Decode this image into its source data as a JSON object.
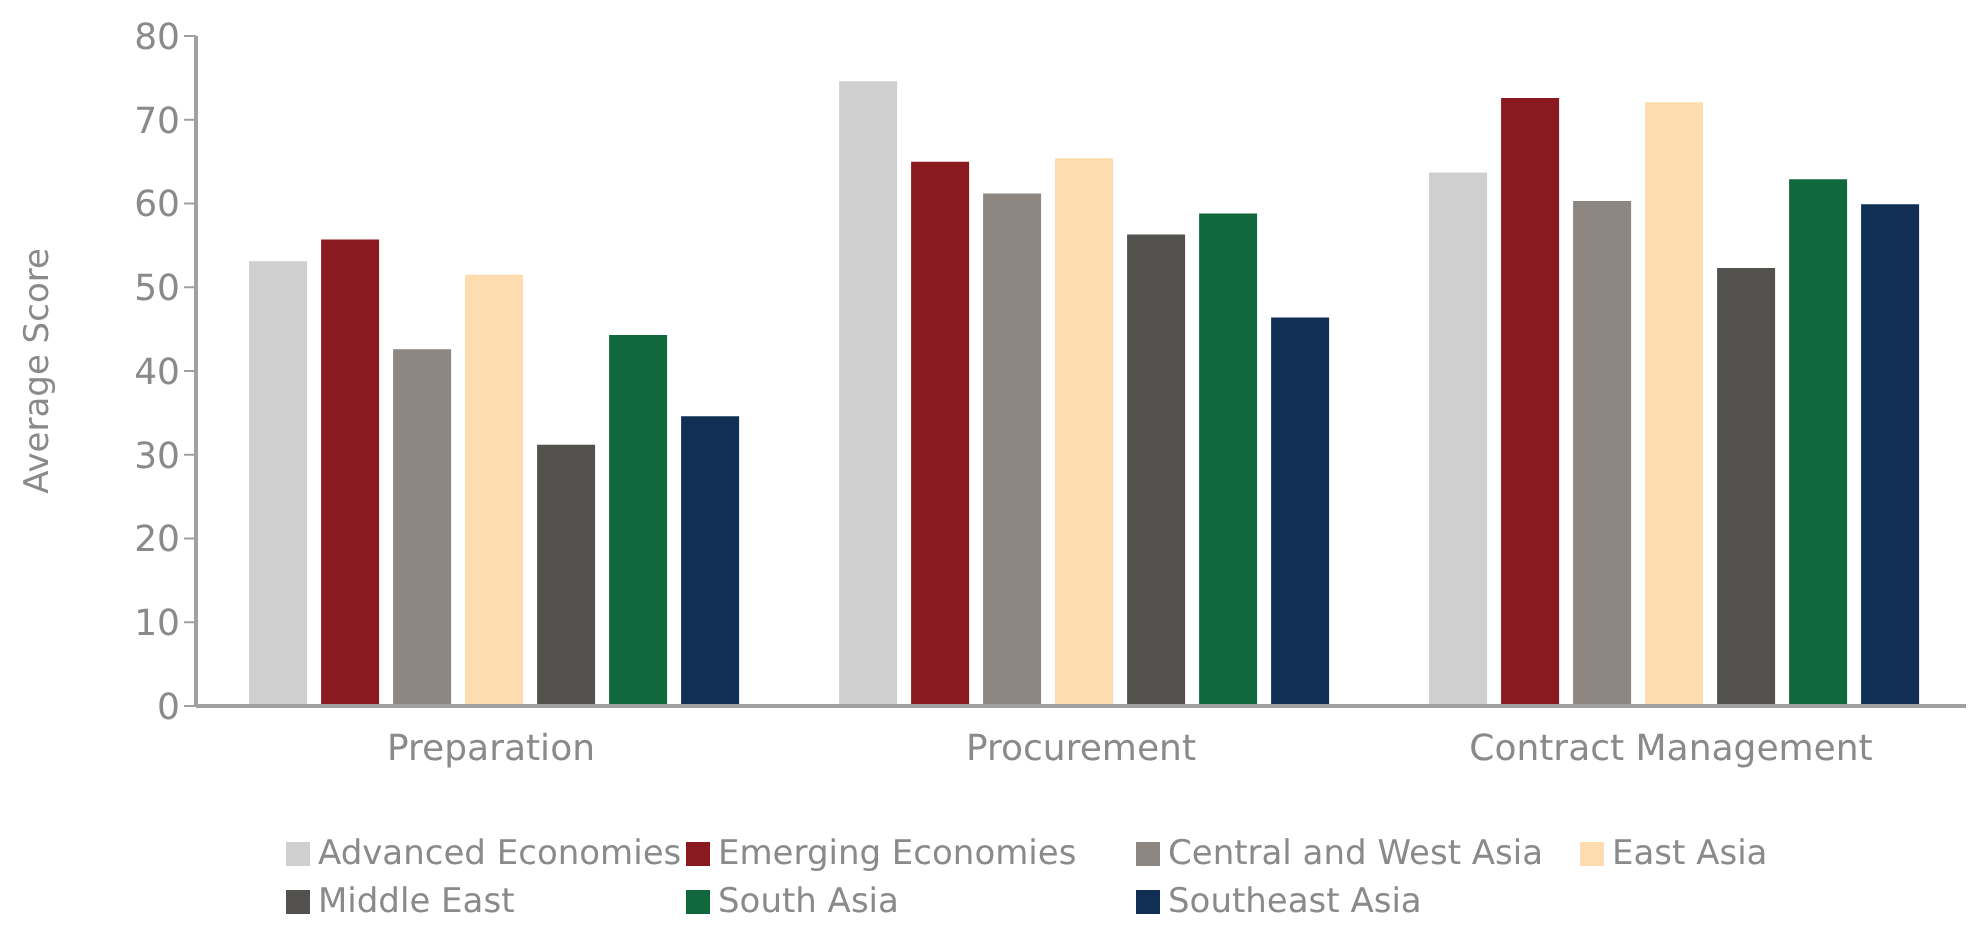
{
  "chart_data": {
    "type": "bar",
    "ylabel": "Average Score",
    "categories": [
      "Preparation",
      "Procurement",
      "Contract Management"
    ],
    "series": [
      {
        "name": "Advanced Economies",
        "color": "#cfcfcf",
        "values": [
          53.1,
          74.6,
          63.7
        ]
      },
      {
        "name": "Emerging Economies",
        "color": "#8b1a20",
        "values": [
          55.7,
          65.0,
          72.6
        ]
      },
      {
        "name": "Central and West Asia",
        "color": "#8e8680",
        "values": [
          42.6,
          61.2,
          60.3
        ]
      },
      {
        "name": "East Asia",
        "color": "#fddcb0",
        "values": [
          51.5,
          65.4,
          72.1
        ]
      },
      {
        "name": "Middle East",
        "color": "#53514d",
        "values": [
          31.2,
          56.3,
          52.3
        ]
      },
      {
        "name": "South Asia",
        "color": "#11683c",
        "values": [
          44.3,
          58.8,
          62.9
        ]
      },
      {
        "name": "Southeast Asia",
        "color": "#112f55",
        "values": [
          34.6,
          46.4,
          59.9
        ]
      }
    ],
    "ylim": [
      0,
      80
    ],
    "yticks": [
      0,
      10,
      20,
      30,
      40,
      50,
      60,
      70,
      80
    ],
    "grid": false,
    "legend": "bottom"
  }
}
